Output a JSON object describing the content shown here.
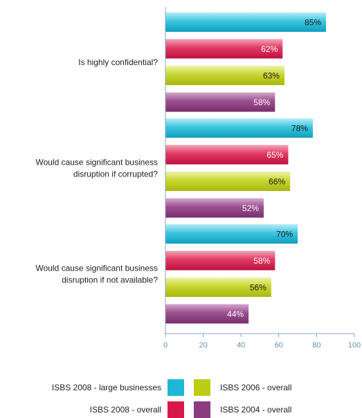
{
  "chart_data": {
    "type": "bar",
    "orientation": "horizontal",
    "categories": [
      "Is highly confidential?",
      "Would cause significant business disruption if corrupted?",
      "Would cause significant business disruption if not available?"
    ],
    "category_lines": [
      [
        "Is highly confidential?"
      ],
      [
        "Would cause significant business",
        "disruption if corrupted?"
      ],
      [
        "Would cause significant business",
        "disruption if not available?"
      ]
    ],
    "series": [
      {
        "name": "ISBS 2008 - large businesses",
        "values": [
          85,
          78,
          70
        ],
        "labels": [
          "85%",
          "78%",
          "70%"
        ],
        "color": "#1cb8d6",
        "label_color": "#1a1a1a"
      },
      {
        "name": "ISBS 2008 - overall",
        "values": [
          62,
          65,
          58
        ],
        "labels": [
          "62%",
          "65%",
          "58%"
        ],
        "color": "#d9184a",
        "label_color": "#ffffff"
      },
      {
        "name": "ISBS 2006 - overall",
        "values": [
          63,
          66,
          56
        ],
        "labels": [
          "63%",
          "66%",
          "56%"
        ],
        "color": "#bccd14",
        "label_color": "#1a1a1a"
      },
      {
        "name": "ISBS 2004 - overall",
        "values": [
          58,
          52,
          44
        ],
        "labels": [
          "58%",
          "52%",
          "44%"
        ],
        "color": "#8b3b7e",
        "label_color": "#ffffff"
      }
    ],
    "xlim": [
      0,
      100
    ],
    "xticks": [
      "0",
      "20",
      "40",
      "60",
      "80",
      "100"
    ],
    "title": "",
    "xlabel": "",
    "ylabel": "",
    "grid": false,
    "legend_position": "bottom"
  },
  "legend": {
    "left_column": [
      "ISBS 2008 - large businesses",
      "ISBS 2008 - overall"
    ],
    "right_column": [
      "ISBS 2006 - overall",
      "ISBS 2004 - overall"
    ]
  }
}
